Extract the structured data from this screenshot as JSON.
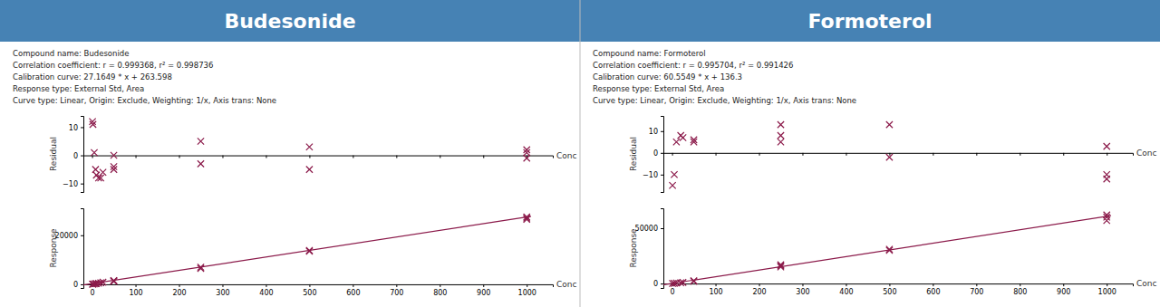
{
  "chart_data": [
    {
      "type": "scatter",
      "title": "Budesonide",
      "annotations": [
        "Compound name: Budesonide",
        "Correlation coefficient: r = 0.999368, r² = 0.998736",
        "Calibration curve: 27.1649 * x + 263.598",
        "Response type: External Std, Area",
        "Curve type: Linear, Origin: Exclude, Weighting: 1/x, Axis trans: None"
      ],
      "y_label": "Residual",
      "x_label": "Conc",
      "x": [
        1,
        2,
        5,
        8,
        10,
        15,
        20,
        25,
        50,
        50,
        50,
        250,
        250,
        500,
        500,
        1000,
        1000,
        1000
      ],
      "values": [
        12,
        11,
        1,
        -5,
        -7,
        -8,
        -8,
        -6,
        -5,
        -4,
        0,
        5,
        -3,
        3,
        -5,
        1,
        2,
        -1
      ],
      "color": "#8b1a4a",
      "marker": "x",
      "xlim": [
        -20,
        1060
      ],
      "xticks": [
        0,
        100,
        200,
        300,
        400,
        500,
        600,
        700,
        800,
        900,
        1000
      ],
      "ylim": [
        -13,
        14
      ],
      "yticks": [
        {
          "value": -10.0,
          "label": "−10"
        },
        0.0,
        10.0
      ],
      "tick_labels": "y"
    },
    {
      "type": "scatter",
      "y_label": "Response",
      "x_label": "Conc",
      "series": [
        {
          "type": "line",
          "color": "#8b1a4a",
          "x": [
            -20,
            1010
          ],
          "values": [
            -279.7,
            27700.147
          ]
        },
        {
          "type": "scatter",
          "color": "#8b1a4a",
          "marker": "x",
          "x": [
            1,
            2,
            5,
            8,
            10,
            15,
            20,
            25,
            50,
            50,
            50,
            250,
            250,
            500,
            500,
            1000,
            1000,
            1000
          ],
          "values": [
            50,
            60,
            180,
            250,
            300,
            450,
            600,
            850,
            1200,
            1400,
            1500,
            7000,
            6500,
            13800,
            13500,
            27500,
            27000,
            26500
          ]
        }
      ],
      "xlim": [
        -20,
        1060
      ],
      "xticks": [
        0,
        100,
        200,
        300,
        400,
        500,
        600,
        700,
        800,
        900,
        1000
      ],
      "ylim": [
        -1500,
        31000
      ],
      "yticks": [
        0,
        20000
      ]
    },
    {
      "type": "scatter",
      "title": "Formoterol",
      "annotations": [
        "Compound name: Formoterol",
        "Correlation coefficient: r = 0.995704, r² = 0.991426",
        "Calibration curve: 60.5549 * x + 136.3",
        "Response type: External Std, Area",
        "Curve type: Linear, Origin: Exclude, Weighting: 1/x, Axis trans: None"
      ],
      "y_label": "Residual",
      "x_label": "Conc",
      "x": [
        1,
        5,
        10,
        20,
        25,
        50,
        50,
        250,
        250,
        250,
        500,
        500,
        1000,
        1000,
        1000
      ],
      "values": [
        -15,
        -10,
        5,
        8,
        7,
        6,
        5,
        5,
        8,
        13,
        -2,
        13,
        3,
        -10,
        -12
      ],
      "color": "#8b1a4a",
      "marker": "x",
      "xlim": [
        -20,
        1060
      ],
      "xticks": [
        0,
        100,
        200,
        300,
        400,
        500,
        600,
        700,
        800,
        900,
        1000
      ],
      "ylim": [
        -18,
        17
      ],
      "yticks": [
        {
          "value": -10.0,
          "label": "−10"
        },
        0.0,
        10.0
      ],
      "tick_labels": "y"
    },
    {
      "type": "scatter",
      "y_label": "Response",
      "x_label": "Conc",
      "series": [
        {
          "type": "line",
          "color": "#8b1a4a",
          "x": [
            -20,
            1010
          ],
          "values": [
            -1074.798,
            61296.749
          ]
        },
        {
          "type": "scatter",
          "color": "#8b1a4a",
          "marker": "x",
          "x": [
            1,
            5,
            10,
            20,
            25,
            50,
            50,
            250,
            250,
            250,
            500,
            500,
            1000,
            1000,
            1000
          ],
          "values": [
            100,
            200,
            500,
            700,
            1000,
            2000,
            2500,
            15000,
            16000,
            17000,
            30000,
            31000,
            57000,
            60000,
            62000
          ]
        }
      ],
      "xlim": [
        -20,
        1060
      ],
      "xticks": [
        0,
        100,
        200,
        300,
        400,
        500,
        600,
        700,
        800,
        900,
        1000
      ],
      "ylim": [
        -4000,
        68000
      ],
      "yticks": [
        0,
        50000
      ]
    }
  ]
}
